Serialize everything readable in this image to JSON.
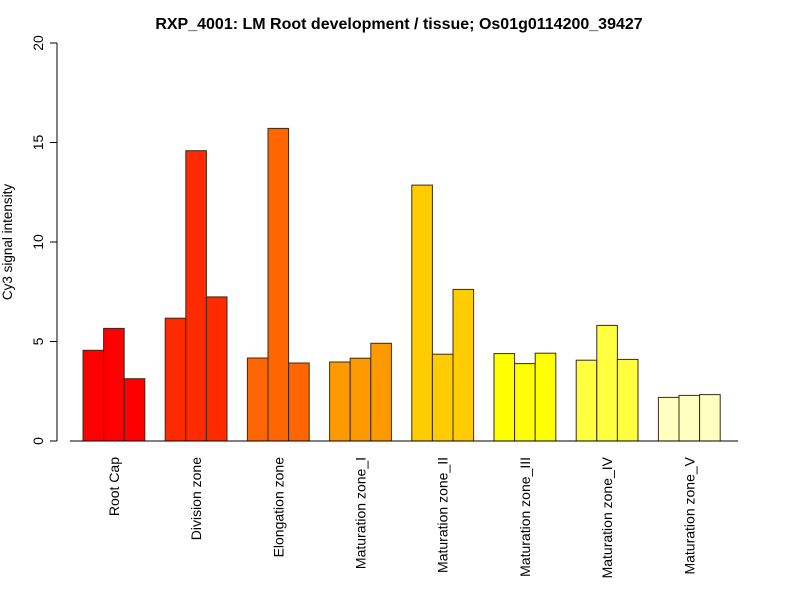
{
  "chart_data": {
    "type": "bar",
    "title": "RXP_4001: LM Root development / tissue; Os01g0114200_39427",
    "xlabel": "",
    "ylabel": "Cy3 signal intensity",
    "ylim": [
      0,
      20
    ],
    "yticks": [
      0,
      5,
      10,
      15,
      20
    ],
    "grid": false,
    "legend": "none",
    "categories": [
      "Root Cap",
      "Division zone",
      "Elongation zone",
      "Maturation zone_I",
      "Maturation zone_II",
      "Maturation zone_III",
      "Maturation zone_IV",
      "Maturation zone_V"
    ],
    "colors": [
      "#FF0000",
      "#FF2A00",
      "#FF6600",
      "#FF9900",
      "#FFCC00",
      "#FFFF00",
      "#FFFF40",
      "#FFFFBF"
    ],
    "replicates": [
      [
        4.56,
        5.66,
        3.13
      ],
      [
        6.17,
        14.59,
        7.24
      ],
      [
        4.17,
        15.71,
        3.92
      ],
      [
        3.97,
        4.16,
        4.91
      ],
      [
        12.86,
        4.36,
        7.62
      ],
      [
        4.39,
        3.89,
        4.41
      ],
      [
        4.06,
        5.81,
        4.1
      ],
      [
        2.19,
        2.29,
        2.33
      ]
    ]
  }
}
